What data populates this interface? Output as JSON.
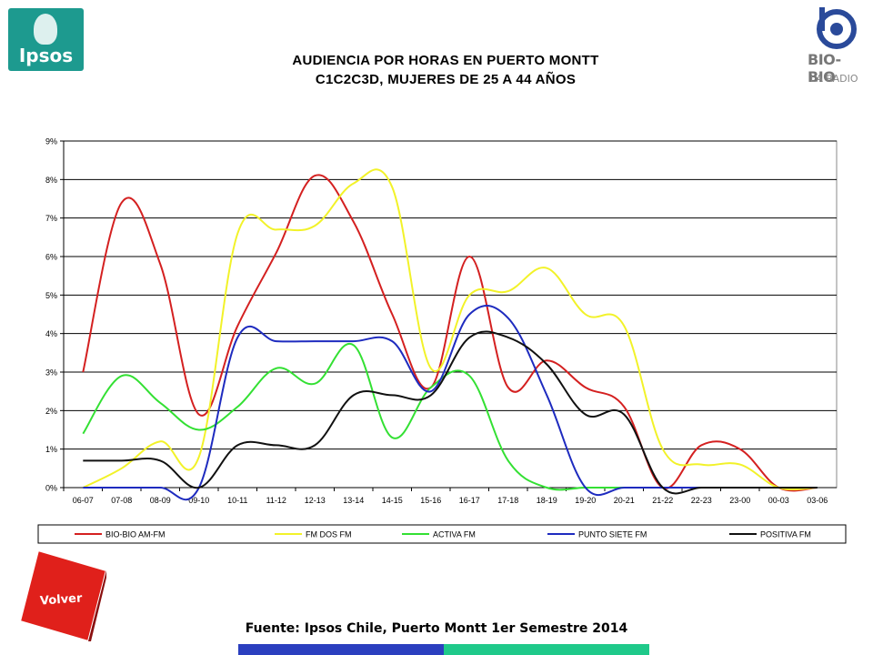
{
  "header": {
    "title_line1": "AUDIENCIA POR HORAS EN PUERTO MONTT",
    "title_line2": "C1C2C3D, MUJERES DE 25 A 44 AÑOS"
  },
  "logos": {
    "left": {
      "text": "Ipsos",
      "color": "#1d9a8f"
    },
    "right": {
      "text1": "BIO-BIO",
      "text2": "LA RADIO"
    }
  },
  "chart_data": {
    "type": "line",
    "categories": [
      "06-07",
      "07-08",
      "08-09",
      "09-10",
      "10-11",
      "11-12",
      "12-13",
      "13-14",
      "14-15",
      "15-16",
      "16-17",
      "17-18",
      "18-19",
      "19-20",
      "20-21",
      "21-22",
      "22-23",
      "23-00",
      "00-03",
      "03-06"
    ],
    "ylim": [
      0,
      9
    ],
    "yticks": [
      "0%",
      "1%",
      "2%",
      "3%",
      "4%",
      "5%",
      "6%",
      "7%",
      "8%",
      "9%"
    ],
    "grid": true,
    "legend_position": "bottom",
    "series": [
      {
        "name": "BIO-BIO AM-FM",
        "color": "#d42020",
        "values": [
          3.0,
          7.4,
          5.8,
          1.9,
          4.2,
          6.1,
          8.1,
          6.9,
          4.5,
          2.6,
          6.0,
          2.6,
          3.3,
          2.6,
          2.1,
          0.0,
          1.1,
          1.0,
          0.0,
          0.0
        ]
      },
      {
        "name": "FM DOS FM",
        "color": "#f2f229",
        "values": [
          0.0,
          0.5,
          1.2,
          0.8,
          6.6,
          6.7,
          6.8,
          7.9,
          7.8,
          3.1,
          5.0,
          5.1,
          5.7,
          4.5,
          4.2,
          1.0,
          0.6,
          0.6,
          0.0,
          0.0
        ]
      },
      {
        "name": "ACTIVA FM",
        "color": "#33e033",
        "values": [
          1.4,
          2.9,
          2.2,
          1.5,
          2.1,
          3.1,
          2.7,
          3.7,
          1.3,
          2.6,
          2.9,
          0.7,
          0.0,
          0.0,
          0.0,
          0.0,
          0.0,
          0.0,
          0.0,
          0.0
        ]
      },
      {
        "name": "PUNTO SIETE FM",
        "color": "#1e2bbf",
        "values": [
          0.0,
          0.0,
          0.0,
          0.0,
          3.9,
          3.8,
          3.8,
          3.8,
          3.8,
          2.5,
          4.5,
          4.4,
          2.4,
          0.0,
          0.0,
          0.0,
          0.0,
          0.0,
          0.0,
          0.0
        ]
      },
      {
        "name": "POSITIVA FM",
        "color": "#111111",
        "values": [
          0.7,
          0.7,
          0.7,
          0.0,
          1.1,
          1.1,
          1.1,
          2.4,
          2.4,
          2.4,
          3.9,
          3.9,
          3.2,
          1.9,
          1.9,
          0.0,
          0.0,
          0.0,
          0.0,
          0.0
        ]
      }
    ]
  },
  "nav": {
    "volver_label": "Volver",
    "volver_color": "#e0201b"
  },
  "footer": {
    "source": "Fuente: Ipsos Chile, Puerto Montt 1er Semestre 2014"
  }
}
